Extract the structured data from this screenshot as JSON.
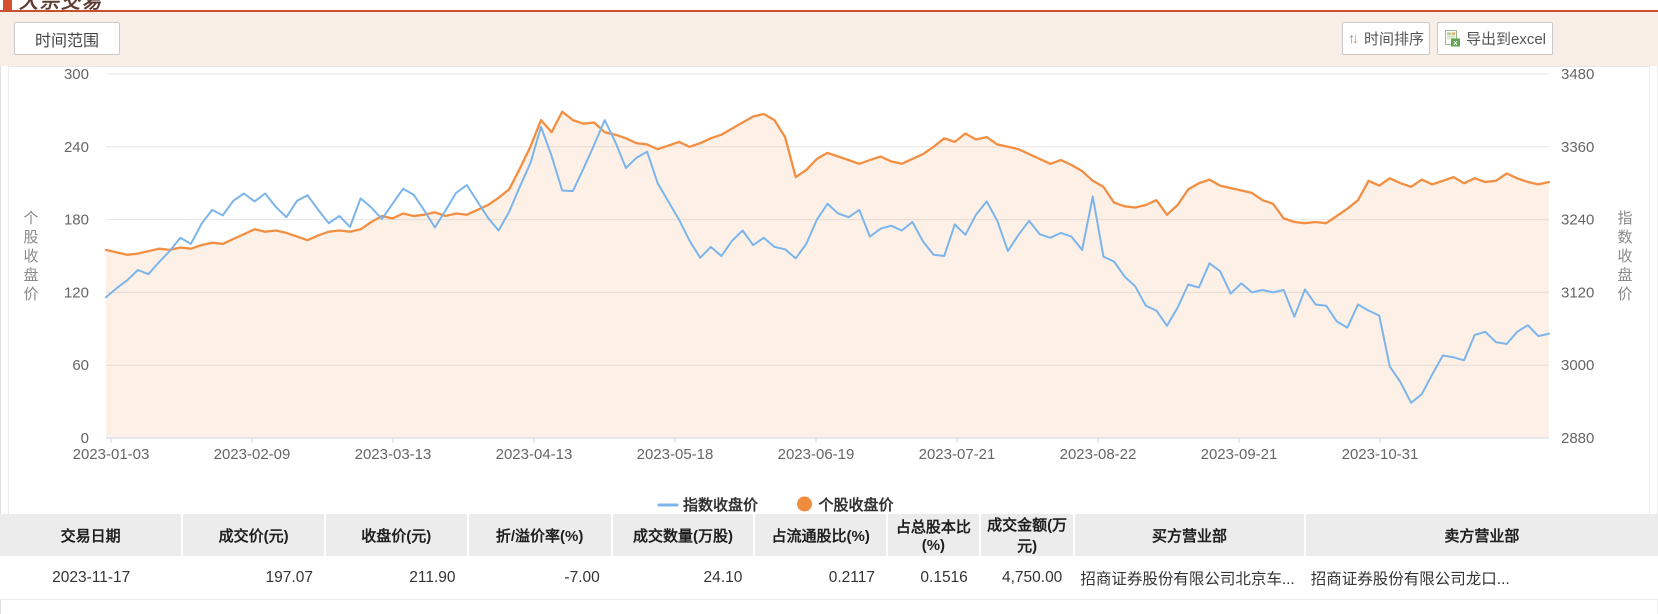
{
  "header": {
    "title": "大宗交易",
    "accent_color": "#c94f31"
  },
  "toolbar": {
    "time_range_label": "时间范围",
    "sort_button_label": "时间排序",
    "export_button_label": "导出到excel"
  },
  "chart_data": {
    "type": "line",
    "x_tick_labels": [
      "2023-01-03",
      "2023-02-09",
      "2023-03-13",
      "2023-04-13",
      "2023-05-18",
      "2023-06-19",
      "2023-07-21",
      "2023-08-22",
      "2023-09-21",
      "2023-10-31"
    ],
    "left_axis": {
      "title": "个股收盘价",
      "min": 0,
      "max": 300,
      "ticks": [
        0,
        60,
        120,
        180,
        240,
        300
      ]
    },
    "right_axis": {
      "title": "指数收盘价",
      "min": 2880,
      "max": 3480,
      "ticks": [
        2880,
        3000,
        3120,
        3240,
        3360,
        3480
      ]
    },
    "grid": true,
    "legend_position": "bottom-center",
    "series": [
      {
        "name": "指数收盘价",
        "axis": "right",
        "type": "line",
        "color": "#7cb5ec",
        "values": [
          3112,
          3127,
          3140,
          3157,
          3150,
          3170,
          3188,
          3210,
          3200,
          3233,
          3256,
          3247,
          3271,
          3283,
          3270,
          3283,
          3261,
          3244,
          3271,
          3280,
          3256,
          3234,
          3246,
          3228,
          3275,
          3260,
          3241,
          3266,
          3291,
          3281,
          3255,
          3227,
          3255,
          3284,
          3297,
          3270,
          3243,
          3222,
          3253,
          3294,
          3333,
          3393,
          3345,
          3288,
          3287,
          3324,
          3363,
          3404,
          3368,
          3325,
          3342,
          3352,
          3300,
          3270,
          3240,
          3205,
          3177,
          3195,
          3180,
          3205,
          3222,
          3198,
          3210,
          3195,
          3191,
          3176,
          3200,
          3240,
          3266,
          3250,
          3244,
          3256,
          3212,
          3225,
          3230,
          3222,
          3236,
          3204,
          3182,
          3180,
          3232,
          3215,
          3248,
          3270,
          3238,
          3188,
          3215,
          3238,
          3216,
          3210,
          3218,
          3212,
          3190,
          3278,
          3179,
          3171,
          3146,
          3130,
          3098,
          3090,
          3065,
          3095,
          3133,
          3128,
          3168,
          3155,
          3118,
          3135,
          3120,
          3124,
          3120,
          3124,
          3080,
          3125,
          3100,
          3098,
          3072,
          3062,
          3100,
          3090,
          3082,
          2998,
          2972,
          2938,
          2952,
          2985,
          3016,
          3013,
          3008,
          3050,
          3055,
          3038,
          3035,
          3055,
          3066,
          3048,
          3052
        ]
      },
      {
        "name": "个股收盘价",
        "axis": "left",
        "type": "area-line",
        "color": "#f28f43",
        "fill": "rgba(242,143,67,0.13)",
        "values": [
          155,
          153,
          151,
          152,
          154,
          156,
          155,
          157,
          156,
          159,
          161,
          160,
          164,
          168,
          172,
          170,
          171,
          169,
          166,
          163,
          167,
          170,
          171,
          170,
          172,
          178,
          183,
          181,
          185,
          183,
          184,
          186,
          183,
          185,
          184,
          188,
          192,
          198,
          205,
          222,
          240,
          262,
          252,
          269,
          262,
          259,
          260,
          252,
          250,
          247,
          243,
          242,
          238,
          241,
          244,
          240,
          243,
          247,
          250,
          255,
          260,
          265,
          267,
          262,
          248,
          215,
          221,
          230,
          235,
          232,
          229,
          226,
          229,
          232,
          228,
          226,
          230,
          234,
          240,
          247,
          244,
          251,
          246,
          248,
          242,
          240,
          238,
          234,
          230,
          226,
          229,
          225,
          220,
          212,
          207,
          194,
          191,
          190,
          192,
          196,
          184,
          192,
          205,
          210,
          213,
          208,
          206,
          204,
          202,
          196,
          193,
          181,
          178,
          177,
          178,
          177,
          183,
          189,
          196,
          212,
          208,
          214,
          210,
          207,
          213,
          209,
          212,
          215,
          210,
          214,
          211,
          212,
          218,
          214,
          211,
          209,
          211
        ]
      }
    ],
    "legend": [
      {
        "label": "指数收盘价",
        "swatch": "line",
        "color": "#7cb5ec"
      },
      {
        "label": "个股收盘价",
        "swatch": "circle",
        "color": "#ef8c3e"
      }
    ]
  },
  "table": {
    "columns": [
      {
        "label": "交易日期",
        "align": "c",
        "width": 11.0
      },
      {
        "label": "成交价(元)",
        "align": "r",
        "width": 8.6
      },
      {
        "label": "收盘价(元)",
        "align": "r",
        "width": 8.6
      },
      {
        "label": "折/溢价率(%)",
        "align": "r",
        "width": 8.7
      },
      {
        "label": "成交数量(万股)",
        "align": "r",
        "width": 8.6
      },
      {
        "label": "占流通股比(%)",
        "align": "r",
        "width": 8.0
      },
      {
        "label": "占总股本比(%)",
        "align": "r",
        "width": 5.6
      },
      {
        "label": "成交金额(万元)",
        "align": "r",
        "width": 5.7
      },
      {
        "label": "买方营业部",
        "align": "l",
        "width": 13.9
      },
      {
        "label": "卖方营业部",
        "align": "l",
        "width": 21.3
      }
    ],
    "rows": [
      [
        "2023-11-17",
        "197.07",
        "211.90",
        "-7.00",
        "24.10",
        "0.2117",
        "0.1516",
        "4,750.00",
        "招商证券股份有限公司北京车...",
        "招商证券股份有限公司龙口..."
      ]
    ]
  }
}
